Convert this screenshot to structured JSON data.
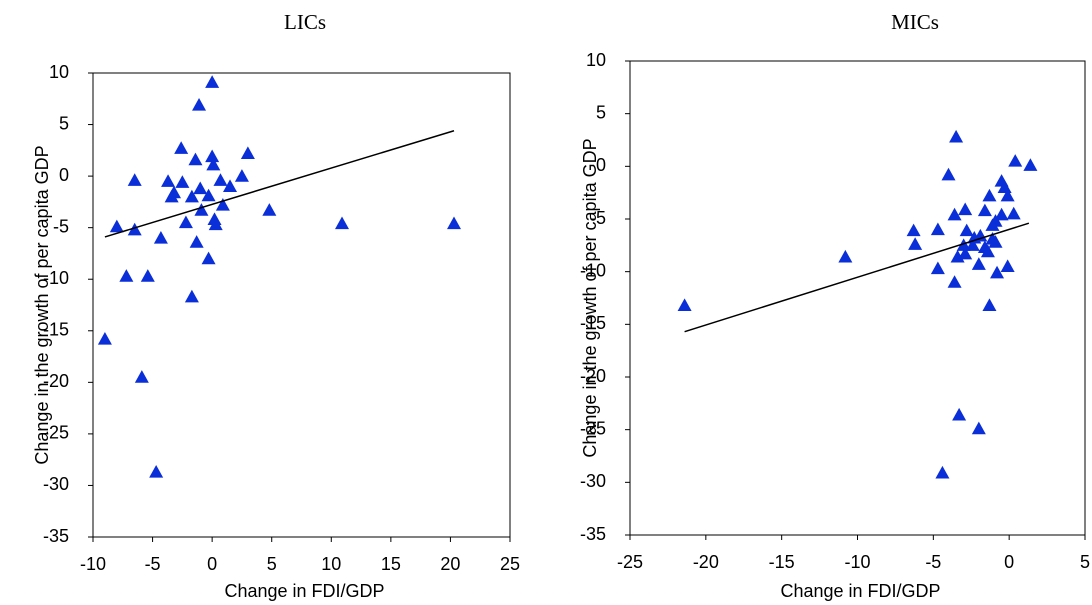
{
  "chart_data": [
    {
      "type": "scatter",
      "title": "LICs",
      "x_label": "Change in FDI/GDP",
      "y_label": "Change in the growth of per capita GDP",
      "xlim": [
        -10,
        25
      ],
      "xticks": [
        -10,
        -5,
        0,
        5,
        10,
        15,
        20,
        25
      ],
      "ylim": [
        -35,
        10
      ],
      "yticks": [
        -35,
        -30,
        -25,
        -20,
        -15,
        -10,
        -5,
        0,
        5,
        10
      ],
      "series": [
        {
          "color": "#0a2fd8",
          "x": [
            0,
            -1.1,
            -2.6,
            3,
            0,
            0.1,
            -1.4,
            -6.5,
            -3.7,
            -2.5,
            0.7,
            2.5,
            -3.2,
            -1,
            1.5,
            -3.4,
            -1.7,
            -0.3,
            0.9,
            -0.9,
            0.2,
            -2.2,
            0.3,
            -8,
            -6.5,
            4.8,
            10.9,
            20.3,
            -4.3,
            -1.3,
            -0.3,
            -7.2,
            -5.4,
            -1.7,
            -9,
            -5.9,
            -4.7
          ],
          "values": [
            9.1,
            6.9,
            2.7,
            2.2,
            1.9,
            1.1,
            1.6,
            -0.4,
            -0.5,
            -0.6,
            -0.4,
            0,
            -1.6,
            -1.2,
            -1,
            -2,
            -2,
            -1.9,
            -2.8,
            -3.3,
            -4.2,
            -4.5,
            -4.7,
            -4.9,
            -5.2,
            -3.3,
            -4.6,
            -4.6,
            -6,
            -6.4,
            -8,
            -9.7,
            -9.7,
            -11.7,
            -15.8,
            -19.5,
            -28.7
          ]
        }
      ],
      "trendline": {
        "color": "#000000",
        "x": [
          -9,
          20.3
        ],
        "values": [
          -5.9,
          4.4
        ]
      }
    },
    {
      "type": "scatter",
      "title": "MICs",
      "x_label": "Change in FDI/GDP",
      "y_label": "Change in the growth of per capita GDP",
      "xlim": [
        -25,
        5
      ],
      "xticks": [
        -25,
        -20,
        -15,
        -10,
        -5,
        0,
        5
      ],
      "ylim": [
        -35,
        10
      ],
      "yticks": [
        -35,
        -30,
        -25,
        -20,
        -15,
        -10,
        -5,
        0,
        5,
        10
      ],
      "series": [
        {
          "color": "#0a2fd8",
          "x": [
            -21.4,
            -10.8,
            -3.5,
            0.4,
            1.4,
            -4,
            -0.5,
            -0.3,
            -1.3,
            -0.1,
            -2.9,
            -3.6,
            -1.6,
            0.3,
            -0.5,
            -0.9,
            -1.1,
            -6.3,
            -4.7,
            -2.8,
            -1.9,
            -2.3,
            -1.1,
            -6.2,
            -3,
            -2.4,
            -1.6,
            -0.9,
            -3.4,
            -2.9,
            -2,
            -1.4,
            -0.1,
            -4.7,
            -0.8,
            -3.6,
            -1.3,
            -3.3,
            -2,
            -4.4
          ],
          "values": [
            -13.2,
            -8.6,
            2.8,
            0.5,
            0.1,
            -0.8,
            -1.4,
            -2,
            -2.8,
            -2.8,
            -4.1,
            -4.6,
            -4.2,
            -4.5,
            -4.6,
            -5.2,
            -5.6,
            -6.1,
            -6,
            -6.1,
            -6.6,
            -6.8,
            -6.9,
            -7.4,
            -7.5,
            -7.5,
            -7.7,
            -7.2,
            -8.6,
            -8.3,
            -9.3,
            -8.1,
            -9.5,
            -9.7,
            -10.1,
            -11,
            -13.2,
            -23.6,
            -24.9,
            -29.1
          ]
        }
      ],
      "trendline": {
        "color": "#000000",
        "x": [
          -21.4,
          1.3
        ],
        "values": [
          -15.7,
          -5.4
        ]
      }
    }
  ]
}
